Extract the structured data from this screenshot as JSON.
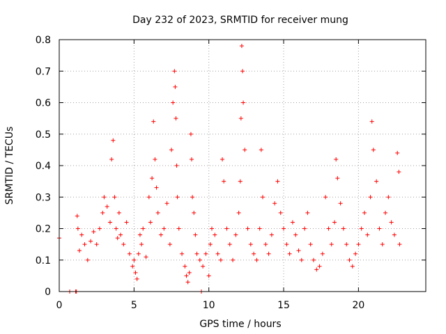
{
  "chart_data": {
    "type": "scatter",
    "title": "Day 232 of 2023, SRMTID for receiver mung",
    "xlabel": "GPS time / hours",
    "ylabel": "SRMTID / TECUs",
    "xlim": [
      0,
      24.5
    ],
    "ylim": [
      0,
      0.8
    ],
    "xticks": [
      0,
      5,
      10,
      15,
      20
    ],
    "xtick_labels": [
      "0",
      "5",
      "10",
      "15",
      "20"
    ],
    "yticks": [
      0,
      0.1,
      0.2,
      0.3,
      0.4,
      0.5,
      0.6,
      0.7,
      0.8
    ],
    "ytick_labels": [
      "0",
      "0.1",
      "0.2",
      "0.3",
      "0.4",
      "0.5",
      "0.6",
      "0.7",
      "0.8"
    ],
    "grid": true,
    "marker": "+",
    "color": "#ff0000",
    "series": [
      {
        "name": "SRMTID",
        "x": [
          0.0,
          0.7,
          1.1,
          1.15,
          9.5,
          1.2,
          1.25,
          1.35,
          1.5,
          1.7,
          1.9,
          2.1,
          2.3,
          2.5,
          2.7,
          2.9,
          3.0,
          3.2,
          3.4,
          3.5,
          3.6,
          3.7,
          3.8,
          3.9,
          4.0,
          4.1,
          4.3,
          4.5,
          4.7,
          4.9,
          5.0,
          5.1,
          5.2,
          5.3,
          5.4,
          5.5,
          5.6,
          5.8,
          6.0,
          6.1,
          6.2,
          6.3,
          6.4,
          6.5,
          6.6,
          6.8,
          7.0,
          7.2,
          7.4,
          7.5,
          7.6,
          7.7,
          7.75,
          7.8,
          7.85,
          7.9,
          8.0,
          8.2,
          8.4,
          8.5,
          8.6,
          8.7,
          8.8,
          8.85,
          8.9,
          9.0,
          9.1,
          9.2,
          9.4,
          9.6,
          9.8,
          10.0,
          10.1,
          10.2,
          10.4,
          10.6,
          10.8,
          10.9,
          11.0,
          11.2,
          11.4,
          11.6,
          11.8,
          12.0,
          12.1,
          12.15,
          12.2,
          12.25,
          12.3,
          12.4,
          12.6,
          12.8,
          13.0,
          13.2,
          13.4,
          13.5,
          13.6,
          13.8,
          14.0,
          14.2,
          14.4,
          14.6,
          14.8,
          15.0,
          15.2,
          15.4,
          15.6,
          15.8,
          16.0,
          16.2,
          16.4,
          16.6,
          16.8,
          17.0,
          17.2,
          17.4,
          17.6,
          17.8,
          18.0,
          18.2,
          18.4,
          18.5,
          18.6,
          18.8,
          19.0,
          19.2,
          19.4,
          19.6,
          19.8,
          20.0,
          20.2,
          20.4,
          20.6,
          20.8,
          20.9,
          21.0,
          21.2,
          21.4,
          21.6,
          21.8,
          22.0,
          22.2,
          22.4,
          22.6,
          22.7,
          22.75
        ],
        "y": [
          0.17,
          0.0,
          0.0,
          0.0,
          0.0,
          0.24,
          0.2,
          0.13,
          0.18,
          0.15,
          0.1,
          0.16,
          0.19,
          0.15,
          0.2,
          0.25,
          0.3,
          0.27,
          0.22,
          0.42,
          0.48,
          0.3,
          0.2,
          0.17,
          0.25,
          0.18,
          0.15,
          0.22,
          0.12,
          0.08,
          0.1,
          0.06,
          0.04,
          0.12,
          0.18,
          0.15,
          0.2,
          0.11,
          0.3,
          0.22,
          0.36,
          0.54,
          0.42,
          0.33,
          0.25,
          0.18,
          0.2,
          0.28,
          0.15,
          0.45,
          0.6,
          0.7,
          0.65,
          0.55,
          0.4,
          0.3,
          0.2,
          0.12,
          0.08,
          0.05,
          0.03,
          0.06,
          0.5,
          0.42,
          0.3,
          0.25,
          0.18,
          0.12,
          0.1,
          0.08,
          0.12,
          0.05,
          0.15,
          0.2,
          0.18,
          0.12,
          0.1,
          0.42,
          0.35,
          0.2,
          0.15,
          0.1,
          0.18,
          0.25,
          0.35,
          0.55,
          0.78,
          0.7,
          0.6,
          0.45,
          0.2,
          0.15,
          0.12,
          0.1,
          0.2,
          0.45,
          0.3,
          0.15,
          0.12,
          0.18,
          0.28,
          0.35,
          0.25,
          0.2,
          0.15,
          0.12,
          0.22,
          0.18,
          0.13,
          0.1,
          0.2,
          0.25,
          0.15,
          0.1,
          0.07,
          0.08,
          0.12,
          0.3,
          0.2,
          0.15,
          0.22,
          0.42,
          0.36,
          0.28,
          0.2,
          0.15,
          0.1,
          0.08,
          0.12,
          0.15,
          0.2,
          0.25,
          0.18,
          0.3,
          0.54,
          0.45,
          0.35,
          0.2,
          0.15,
          0.25,
          0.3,
          0.22,
          0.18,
          0.44,
          0.38,
          0.15
        ]
      }
    ]
  }
}
